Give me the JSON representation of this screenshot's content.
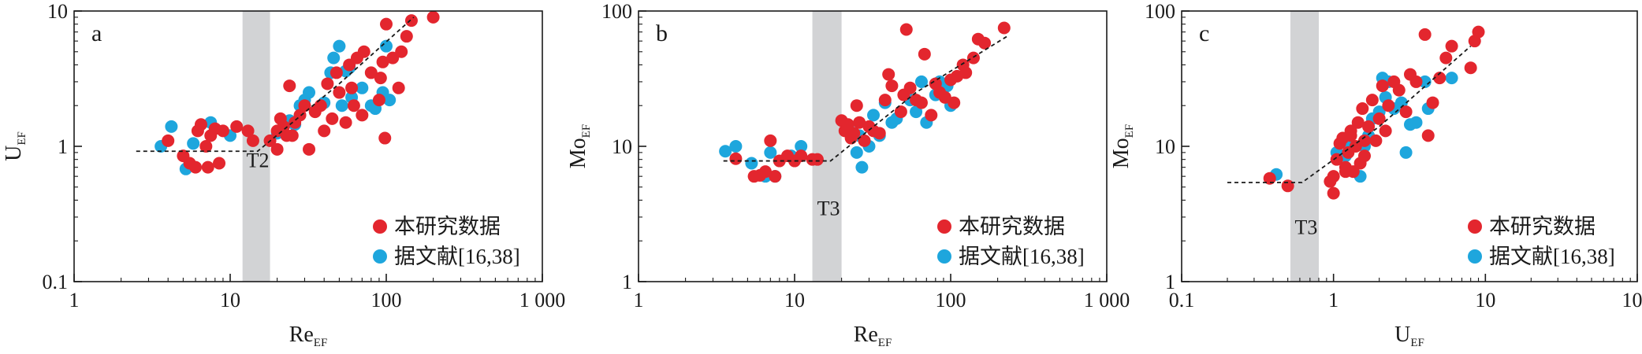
{
  "colors": {
    "red": "#e3262e",
    "blue": "#1ea6dd",
    "band": "#d2d3d5",
    "axis": "#1a1a1a"
  },
  "chart_data": [
    {
      "type": "scatter",
      "panel_label": "a",
      "xlabel": {
        "main": "Re",
        "sub": "EF"
      },
      "ylabel": {
        "main": "U",
        "sub": "EF"
      },
      "x_scale": "log",
      "y_scale": "log",
      "xlim": [
        1,
        1000
      ],
      "ylim": [
        0.1,
        10
      ],
      "xticks": [
        1,
        10,
        100,
        1000
      ],
      "xtick_labels": [
        "1",
        "10",
        "100",
        "1 000"
      ],
      "yticks": [
        0.1,
        1,
        10
      ],
      "ytick_labels": [
        "0.1",
        "1",
        "10"
      ],
      "band": {
        "x": [
          12,
          18
        ],
        "label": "T2"
      },
      "band_label_y": 0.7,
      "trend": [
        [
          2.5,
          0.92
        ],
        [
          15,
          0.92
        ],
        [
          50,
          2.9
        ],
        [
          150,
          9
        ]
      ],
      "legend": {
        "placement": "bottom-right"
      },
      "series": [
        {
          "name": "本研究数据",
          "color": "red",
          "points": [
            [
              4,
              1.1
            ],
            [
              5,
              0.85
            ],
            [
              5.5,
              0.75
            ],
            [
              6,
              0.7
            ],
            [
              6.2,
              1.3
            ],
            [
              6.5,
              1.45
            ],
            [
              7,
              1.0
            ],
            [
              7.2,
              0.7
            ],
            [
              7.5,
              1.2
            ],
            [
              8,
              1.35
            ],
            [
              8.5,
              0.75
            ],
            [
              9,
              1.3
            ],
            [
              11,
              1.4
            ],
            [
              13,
              1.3
            ],
            [
              14,
              1.1
            ],
            [
              18,
              1.1
            ],
            [
              20,
              1.3
            ],
            [
              20,
              0.95
            ],
            [
              21,
              1.6
            ],
            [
              22,
              1.4
            ],
            [
              23,
              1.2
            ],
            [
              24,
              2.8
            ],
            [
              25,
              1.2
            ],
            [
              26,
              1.5
            ],
            [
              28,
              1.7
            ],
            [
              30,
              2.0
            ],
            [
              32,
              0.95
            ],
            [
              35,
              1.8
            ],
            [
              38,
              2.0
            ],
            [
              40,
              1.3
            ],
            [
              42,
              2.9
            ],
            [
              45,
              1.6
            ],
            [
              48,
              3.5
            ],
            [
              50,
              2.5
            ],
            [
              55,
              1.5
            ],
            [
              58,
              4.0
            ],
            [
              60,
              2.7
            ],
            [
              62,
              2.0
            ],
            [
              65,
              4.5
            ],
            [
              70,
              1.7
            ],
            [
              72,
              5.0
            ],
            [
              80,
              3.5
            ],
            [
              90,
              2.2
            ],
            [
              92,
              3.2
            ],
            [
              95,
              4.2
            ],
            [
              98,
              1.15
            ],
            [
              100,
              8.0
            ],
            [
              110,
              4.5
            ],
            [
              120,
              2.7
            ],
            [
              125,
              5.0
            ],
            [
              135,
              6.5
            ],
            [
              145,
              8.5
            ],
            [
              200,
              9.0
            ]
          ]
        },
        {
          "name": "据文献[16,38]",
          "color": "blue",
          "points": [
            [
              3.6,
              1.0
            ],
            [
              4.2,
              1.4
            ],
            [
              5.2,
              0.68
            ],
            [
              5.8,
              1.05
            ],
            [
              7.5,
              1.5
            ],
            [
              10,
              1.2
            ],
            [
              20,
              1.25
            ],
            [
              24,
              1.55
            ],
            [
              26,
              1.45
            ],
            [
              28,
              2.0
            ],
            [
              30,
              2.2
            ],
            [
              32,
              2.5
            ],
            [
              40,
              2.1
            ],
            [
              44,
              3.5
            ],
            [
              46,
              4.5
            ],
            [
              50,
              5.5
            ],
            [
              52,
              2.0
            ],
            [
              55,
              3.6
            ],
            [
              58,
              3.8
            ],
            [
              60,
              2.3
            ],
            [
              70,
              2.7
            ],
            [
              80,
              2.0
            ],
            [
              85,
              1.9
            ],
            [
              95,
              2.5
            ],
            [
              100,
              5.5
            ],
            [
              105,
              2.2
            ]
          ]
        }
      ]
    },
    {
      "type": "scatter",
      "panel_label": "b",
      "xlabel": {
        "main": "Re",
        "sub": "EF"
      },
      "ylabel": {
        "main": "Mo",
        "sub": "EF"
      },
      "x_scale": "log",
      "y_scale": "log",
      "xlim": [
        1,
        1000
      ],
      "ylim": [
        1,
        100
      ],
      "xticks": [
        1,
        10,
        100,
        1000
      ],
      "xtick_labels": [
        "1",
        "10",
        "100",
        "1 000"
      ],
      "yticks": [
        1,
        10,
        100
      ],
      "ytick_labels": [
        "1",
        "10",
        "100"
      ],
      "band": {
        "x": [
          13,
          20
        ],
        "label": "T3"
      },
      "band_label_y": 3.1,
      "trend": [
        [
          3.5,
          7.8
        ],
        [
          17,
          7.8
        ],
        [
          60,
          25
        ],
        [
          230,
          65
        ]
      ],
      "legend": {
        "placement": "bottom-right"
      },
      "series": [
        {
          "name": "本研究数据",
          "color": "red",
          "points": [
            [
              4.2,
              8.1
            ],
            [
              5.5,
              6.0
            ],
            [
              6,
              6.1
            ],
            [
              6.5,
              6.5
            ],
            [
              7,
              11.0
            ],
            [
              7.5,
              6.0
            ],
            [
              8,
              7.8
            ],
            [
              9,
              8.5
            ],
            [
              10,
              7.8
            ],
            [
              11,
              8.5
            ],
            [
              13,
              8.0
            ],
            [
              14,
              8.0
            ],
            [
              20,
              15.5
            ],
            [
              21,
              13.0
            ],
            [
              22,
              14.5
            ],
            [
              23,
              11.5
            ],
            [
              24,
              12.5
            ],
            [
              25,
              20.0
            ],
            [
              26,
              15.0
            ],
            [
              28,
              11.0
            ],
            [
              30,
              14.0
            ],
            [
              32,
              13.0
            ],
            [
              35,
              12.5
            ],
            [
              38,
              22.0
            ],
            [
              40,
              34.0
            ],
            [
              42,
              28.0
            ],
            [
              48,
              18.0
            ],
            [
              50,
              24.0
            ],
            [
              52,
              73.0
            ],
            [
              55,
              27.0
            ],
            [
              60,
              22.0
            ],
            [
              65,
              21.0
            ],
            [
              68,
              48.0
            ],
            [
              75,
              17.0
            ],
            [
              80,
              29.0
            ],
            [
              85,
              25.0
            ],
            [
              92,
              23.0
            ],
            [
              100,
              31.0
            ],
            [
              105,
              21.0
            ],
            [
              110,
              33.0
            ],
            [
              120,
              40.0
            ],
            [
              125,
              35.0
            ],
            [
              140,
              45.0
            ],
            [
              150,
              62.0
            ],
            [
              165,
              58.0
            ],
            [
              220,
              75.0
            ]
          ]
        },
        {
          "name": "据文献[16,38]",
          "color": "blue",
          "points": [
            [
              3.6,
              9.2
            ],
            [
              4.2,
              10.0
            ],
            [
              5.3,
              7.5
            ],
            [
              6.5,
              6.0
            ],
            [
              7.0,
              9.0
            ],
            [
              7.5,
              6.0
            ],
            [
              9.5,
              8.5
            ],
            [
              11,
              10.0
            ],
            [
              22,
              14.0
            ],
            [
              25,
              9.0
            ],
            [
              26,
              12.0
            ],
            [
              27,
              7.0
            ],
            [
              30,
              10.0
            ],
            [
              32,
              17.0
            ],
            [
              35,
              12.0
            ],
            [
              38,
              21.0
            ],
            [
              42,
              15.0
            ],
            [
              45,
              16.0
            ],
            [
              55,
              22.0
            ],
            [
              60,
              18.0
            ],
            [
              65,
              30.0
            ],
            [
              70,
              15.0
            ],
            [
              80,
              24.0
            ],
            [
              85,
              30.0
            ],
            [
              95,
              28.0
            ],
            [
              100,
              20.0
            ]
          ]
        }
      ]
    },
    {
      "type": "scatter",
      "panel_label": "c",
      "xlabel": {
        "main": "U",
        "sub": "EF"
      },
      "ylabel": {
        "main": "Mo",
        "sub": "EF"
      },
      "x_scale": "log",
      "y_scale": "log",
      "xlim": [
        0.1,
        100
      ],
      "ylim": [
        1,
        100
      ],
      "xticks": [
        0.1,
        1,
        10,
        100
      ],
      "xtick_labels": [
        "0.1",
        "1",
        "10",
        "100"
      ],
      "yticks": [
        1,
        10,
        100
      ],
      "ytick_labels": [
        "1",
        "10",
        "100"
      ],
      "band": {
        "x": [
          0.52,
          0.8
        ],
        "label": "T3"
      },
      "band_label_y": 2.25,
      "trend": [
        [
          0.2,
          5.4
        ],
        [
          0.62,
          5.4
        ],
        [
          2,
          14
        ],
        [
          8,
          55
        ]
      ],
      "legend": {
        "placement": "bottom-right"
      },
      "series": [
        {
          "name": "本研究数据",
          "color": "red",
          "points": [
            [
              0.38,
              5.8
            ],
            [
              0.5,
              5.1
            ],
            [
              0.95,
              5.5
            ],
            [
              1.0,
              4.5
            ],
            [
              1.0,
              6.0
            ],
            [
              1.05,
              8.0
            ],
            [
              1.1,
              10.5
            ],
            [
              1.15,
              11.5
            ],
            [
              1.2,
              7.0
            ],
            [
              1.25,
              9.0
            ],
            [
              1.3,
              13.0
            ],
            [
              1.35,
              6.5
            ],
            [
              1.4,
              10.0
            ],
            [
              1.45,
              15.0
            ],
            [
              1.5,
              7.5
            ],
            [
              1.55,
              19.0
            ],
            [
              1.6,
              8.5
            ],
            [
              1.7,
              14.0
            ],
            [
              1.8,
              22.0
            ],
            [
              1.9,
              11.0
            ],
            [
              2.0,
              16.0
            ],
            [
              2.1,
              28.0
            ],
            [
              2.2,
              13.0
            ],
            [
              2.3,
              20.0
            ],
            [
              2.5,
              30.0
            ],
            [
              2.7,
              26.0
            ],
            [
              3.0,
              18.0
            ],
            [
              3.2,
              34.0
            ],
            [
              3.5,
              30.0
            ],
            [
              4.0,
              67.0
            ],
            [
              4.2,
              12.0
            ],
            [
              4.5,
              21.0
            ],
            [
              5.0,
              32.0
            ],
            [
              5.5,
              45.0
            ],
            [
              6.0,
              55.0
            ],
            [
              8.0,
              38.0
            ],
            [
              8.5,
              60.0
            ],
            [
              9.0,
              70.0
            ],
            [
              1.2,
              6.5
            ],
            [
              1.3,
              12.0
            ],
            [
              1.6,
              11.0
            ]
          ]
        },
        {
          "name": "据文献[16,38]",
          "color": "blue",
          "points": [
            [
              0.42,
              6.2
            ],
            [
              1.05,
              9.0
            ],
            [
              1.2,
              8.5
            ],
            [
              1.3,
              10.0
            ],
            [
              1.5,
              6.0
            ],
            [
              1.6,
              10.0
            ],
            [
              1.7,
              12.0
            ],
            [
              1.8,
              16.0
            ],
            [
              2.0,
              18.0
            ],
            [
              2.1,
              32.0
            ],
            [
              2.2,
              23.0
            ],
            [
              2.3,
              30.0
            ],
            [
              2.5,
              19.0
            ],
            [
              2.8,
              21.0
            ],
            [
              3.0,
              9.0
            ],
            [
              3.2,
              14.5
            ],
            [
              3.5,
              15.0
            ],
            [
              4.0,
              30.0
            ],
            [
              4.2,
              19.0
            ],
            [
              6.0,
              32.0
            ]
          ]
        }
      ]
    }
  ]
}
